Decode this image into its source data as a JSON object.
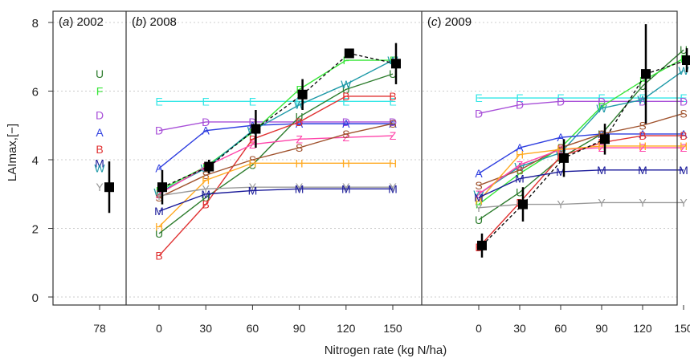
{
  "chart_data": {
    "type": "line",
    "ylabel": "LAImax,[−]",
    "xlabel": "Nitrogen rate (kg N/ha)",
    "ylim": [
      0,
      8
    ],
    "yticks": [
      0,
      2,
      4,
      6,
      8
    ],
    "grid": "horizontal dotted",
    "colors": {
      "U": "#2e7d2e",
      "F": "#39e639",
      "D": "#a84fd8",
      "A": "#2f3fe0",
      "B": "#e03131",
      "M": "#1a1a99",
      "W": "#1e9aa8",
      "Y": "#999999",
      "E": "#33e6e6",
      "H": "#ffaa22",
      "Z": "#ff44aa",
      "S": "#a0522d",
      "obs": "#000000"
    },
    "panels": [
      {
        "label_letter": "a",
        "year": "2002",
        "x": [
          "78"
        ],
        "series": [
          {
            "name": "U",
            "values": [
              6.5
            ]
          },
          {
            "name": "F",
            "values": [
              6.0
            ]
          },
          {
            "name": "D",
            "values": [
              5.3
            ]
          },
          {
            "name": "A",
            "values": [
              4.8
            ]
          },
          {
            "name": "B",
            "values": [
              4.3
            ]
          },
          {
            "name": "M",
            "values": [
              3.9
            ]
          },
          {
            "name": "W",
            "values": [
              3.75
            ]
          },
          {
            "name": "Y",
            "values": [
              3.2
            ]
          }
        ],
        "observed": [
          {
            "x": "78",
            "y": 3.2,
            "err": 0.75
          }
        ]
      },
      {
        "label_letter": "b",
        "year": "2008",
        "x": [
          "0",
          "30",
          "60",
          "90",
          "120",
          "150"
        ],
        "series": [
          {
            "name": "E",
            "values": [
              5.7,
              5.7,
              5.7,
              5.7,
              5.7,
              5.7
            ]
          },
          {
            "name": "D",
            "values": [
              4.85,
              5.1,
              5.1,
              5.1,
              5.1,
              5.1
            ]
          },
          {
            "name": "A",
            "values": [
              3.75,
              4.85,
              5.0,
              5.05,
              5.05,
              5.05
            ]
          },
          {
            "name": "U",
            "values": [
              1.85,
              2.9,
              3.85,
              5.25,
              6.05,
              6.5
            ]
          },
          {
            "name": "F",
            "values": [
              3.1,
              3.8,
              4.8,
              6.05,
              6.9,
              6.9
            ]
          },
          {
            "name": "W",
            "values": [
              3.05,
              3.75,
              4.85,
              5.6,
              6.2,
              6.9
            ]
          },
          {
            "name": "B",
            "values": [
              1.2,
              2.7,
              4.6,
              5.1,
              5.85,
              5.85
            ]
          },
          {
            "name": "Z",
            "values": [
              3.0,
              3.8,
              4.45,
              4.6,
              4.65,
              4.7
            ]
          },
          {
            "name": "S",
            "values": [
              2.9,
              3.55,
              4.0,
              4.35,
              4.75,
              5.05
            ]
          },
          {
            "name": "H",
            "values": [
              2.05,
              3.4,
              3.9,
              3.9,
              3.9,
              3.9
            ]
          },
          {
            "name": "Y",
            "values": [
              2.95,
              3.15,
              3.2,
              3.2,
              3.2,
              3.2
            ]
          },
          {
            "name": "M",
            "values": [
              2.5,
              3.0,
              3.1,
              3.15,
              3.15,
              3.15
            ]
          }
        ],
        "observed": [
          {
            "x": "0",
            "y": 3.2,
            "err": 0.5
          },
          {
            "x": "30",
            "y": 3.8,
            "err": 0.2
          },
          {
            "x": "60",
            "y": 4.9,
            "err": 0.55
          },
          {
            "x": "90",
            "y": 5.9,
            "err": 0.45
          },
          {
            "x": "120",
            "y": 7.1,
            "err": 0.0
          },
          {
            "x": "150",
            "y": 6.8,
            "err": 0.6
          }
        ]
      },
      {
        "label_letter": "c",
        "year": "2009",
        "x": [
          "0",
          "30",
          "60",
          "90",
          "120",
          "150"
        ],
        "series": [
          {
            "name": "E",
            "values": [
              5.8,
              5.8,
              5.8,
              5.8,
              5.8,
              5.8
            ]
          },
          {
            "name": "D",
            "values": [
              5.35,
              5.6,
              5.7,
              5.7,
              5.7,
              5.7
            ]
          },
          {
            "name": "U",
            "values": [
              2.25,
              3.05,
              4.05,
              4.75,
              6.15,
              7.2
            ]
          },
          {
            "name": "F",
            "values": [
              2.7,
              3.6,
              4.35,
              5.55,
              6.3,
              6.95
            ]
          },
          {
            "name": "W",
            "values": [
              3.0,
              3.8,
              4.2,
              5.5,
              5.75,
              6.6
            ]
          },
          {
            "name": "A",
            "values": [
              3.6,
              4.35,
              4.65,
              4.75,
              4.75,
              4.75
            ]
          },
          {
            "name": "S",
            "values": [
              3.25,
              3.7,
              4.35,
              4.75,
              5.0,
              5.35
            ]
          },
          {
            "name": "B",
            "values": [
              1.45,
              2.75,
              4.1,
              4.5,
              4.7,
              4.7
            ]
          },
          {
            "name": "Z",
            "values": [
              3.0,
              3.85,
              4.3,
              4.35,
              4.35,
              4.35
            ]
          },
          {
            "name": "H",
            "values": [
              2.8,
              4.15,
              4.3,
              4.4,
              4.4,
              4.4
            ]
          },
          {
            "name": "M",
            "values": [
              2.9,
              3.45,
              3.65,
              3.7,
              3.7,
              3.7
            ]
          },
          {
            "name": "Y",
            "values": [
              2.6,
              2.7,
              2.7,
              2.75,
              2.75,
              2.75
            ]
          }
        ],
        "observed": [
          {
            "x": "0",
            "y": 1.5,
            "err": 0.35
          },
          {
            "x": "30",
            "y": 2.7,
            "err": 0.5
          },
          {
            "x": "60",
            "y": 4.05,
            "err": 0.55
          },
          {
            "x": "90",
            "y": 4.6,
            "err": 0.45
          },
          {
            "x": "120",
            "y": 6.5,
            "err": 1.45
          },
          {
            "x": "150",
            "y": 6.9,
            "err": 0.35
          }
        ]
      }
    ]
  }
}
